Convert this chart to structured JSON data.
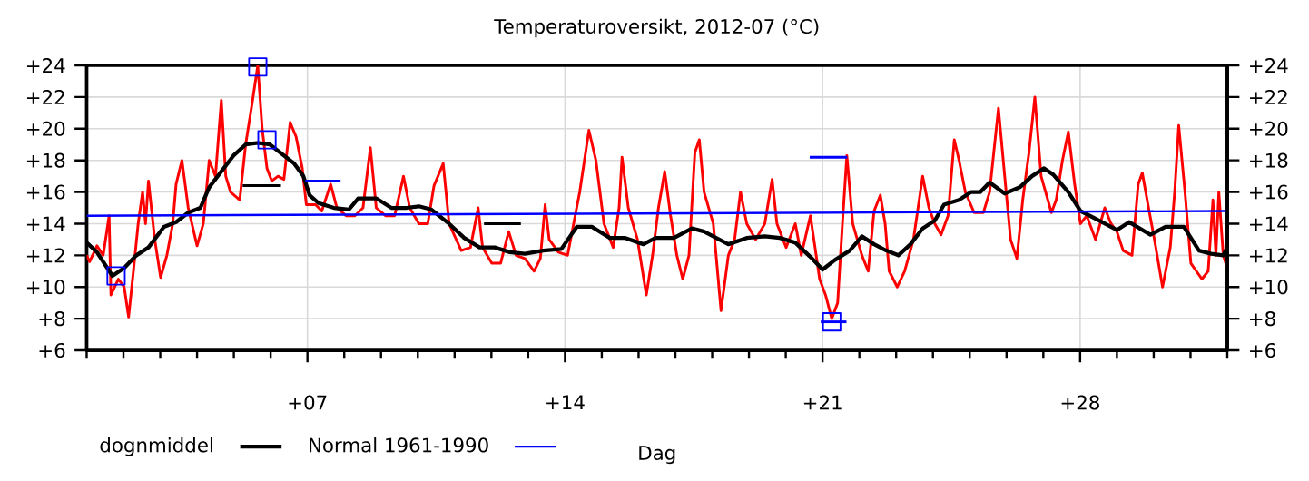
{
  "chart_data": {
    "type": "line",
    "title": "Temperaturoversikt, 2012-07 (°C)",
    "xlabel": "Dag",
    "xlim": [
      1,
      32
    ],
    "xticks": [
      {
        "value": 1,
        "label": null
      },
      {
        "value": 2,
        "label": null
      },
      {
        "value": 3,
        "label": null
      },
      {
        "value": 4,
        "label": null
      },
      {
        "value": 5,
        "label": null
      },
      {
        "value": 6,
        "label": null
      },
      {
        "value": 7,
        "label": "+07"
      },
      {
        "value": 8,
        "label": null
      },
      {
        "value": 9,
        "label": null
      },
      {
        "value": 10,
        "label": null
      },
      {
        "value": 11,
        "label": null
      },
      {
        "value": 12,
        "label": null
      },
      {
        "value": 13,
        "label": null
      },
      {
        "value": 14,
        "label": "+14"
      },
      {
        "value": 15,
        "label": null
      },
      {
        "value": 16,
        "label": null
      },
      {
        "value": 17,
        "label": null
      },
      {
        "value": 18,
        "label": null
      },
      {
        "value": 19,
        "label": null
      },
      {
        "value": 20,
        "label": null
      },
      {
        "value": 21,
        "label": "+21"
      },
      {
        "value": 22,
        "label": null
      },
      {
        "value": 23,
        "label": null
      },
      {
        "value": 24,
        "label": null
      },
      {
        "value": 25,
        "label": null
      },
      {
        "value": 26,
        "label": null
      },
      {
        "value": 27,
        "label": null
      },
      {
        "value": 28,
        "label": "+28"
      },
      {
        "value": 29,
        "label": null
      },
      {
        "value": 30,
        "label": null
      },
      {
        "value": 31,
        "label": null
      },
      {
        "value": 32,
        "label": null
      }
    ],
    "ylim": [
      6,
      24
    ],
    "yticks": [
      {
        "value": 6,
        "label": "+6"
      },
      {
        "value": 8,
        "label": "+8"
      },
      {
        "value": 10,
        "label": "+10"
      },
      {
        "value": 12,
        "label": "+12"
      },
      {
        "value": 14,
        "label": "+14"
      },
      {
        "value": 16,
        "label": "+16"
      },
      {
        "value": 18,
        "label": "+18"
      },
      {
        "value": 20,
        "label": "+20"
      },
      {
        "value": 22,
        "label": "+22"
      },
      {
        "value": 24,
        "label": "+24"
      }
    ],
    "y2lim": [
      6,
      24
    ],
    "y2ticks": [
      {
        "value": 6,
        "label": "+6"
      },
      {
        "value": 8,
        "label": "+8"
      },
      {
        "value": 10,
        "label": "+10"
      },
      {
        "value": 12,
        "label": "+12"
      },
      {
        "value": 14,
        "label": "+14"
      },
      {
        "value": 16,
        "label": "+16"
      },
      {
        "value": 18,
        "label": "+18"
      },
      {
        "value": 20,
        "label": "+20"
      },
      {
        "value": 22,
        "label": "+22"
      },
      {
        "value": 24,
        "label": "+24"
      }
    ],
    "grid": true,
    "legend": "bottom left",
    "line_style": "solid",
    "series": [
      {
        "color": "#ff0000",
        "x": [
          1.0,
          1.08,
          1.28,
          1.45,
          1.61,
          1.66,
          1.86,
          2.02,
          2.14,
          2.27,
          2.4,
          2.52,
          2.6,
          2.68,
          2.85,
          3.01,
          3.18,
          3.34,
          3.43,
          3.59,
          3.76,
          4.0,
          4.17,
          4.33,
          4.5,
          4.66,
          4.78,
          4.91,
          5.16,
          5.32,
          5.49,
          5.65,
          5.77,
          5.9,
          6.03,
          6.2,
          6.36,
          6.53,
          6.69,
          6.86,
          6.97,
          7.22,
          7.39,
          7.63,
          7.8,
          8.05,
          8.29,
          8.51,
          8.71,
          8.87,
          9.12,
          9.37,
          9.61,
          9.78,
          10.03,
          10.27,
          10.44,
          10.69,
          10.85,
          11.18,
          11.43,
          11.64,
          11.76,
          12.01,
          12.25,
          12.47,
          12.67,
          12.91,
          13.16,
          13.33,
          13.46,
          13.57,
          13.82,
          14.07,
          14.4,
          14.65,
          14.84,
          15.06,
          15.31,
          15.47,
          15.55,
          15.72,
          15.97,
          16.21,
          16.38,
          16.54,
          16.71,
          16.87,
          17.04,
          17.2,
          17.37,
          17.53,
          17.65,
          17.78,
          18.03,
          18.24,
          18.44,
          18.61,
          18.77,
          18.94,
          19.18,
          19.43,
          19.63,
          19.76,
          20.01,
          20.26,
          20.42,
          20.67,
          20.92,
          21.08,
          21.25,
          21.41,
          21.54,
          21.66,
          21.82,
          22.07,
          22.24,
          22.4,
          22.57,
          22.7,
          22.81,
          23.03,
          23.23,
          23.47,
          23.72,
          23.89,
          24.05,
          24.22,
          24.41,
          24.58,
          24.71,
          24.88,
          25.12,
          25.37,
          25.54,
          25.78,
          25.95,
          26.11,
          26.28,
          26.44,
          26.61,
          26.77,
          26.94,
          27.22,
          27.35,
          27.52,
          27.68,
          27.85,
          28.01,
          28.18,
          28.42,
          28.67,
          28.84,
          29.0,
          29.17,
          29.41,
          29.58,
          29.69,
          29.86,
          30.02,
          30.24,
          30.45,
          30.57,
          30.68,
          30.85,
          31.01,
          31.31,
          31.48,
          31.61,
          31.69,
          31.77,
          31.89,
          32.0
        ],
        "values": [
          12,
          11.6,
          12.6,
          12,
          14.5,
          9.5,
          10.5,
          10,
          8.1,
          11,
          14,
          16,
          14,
          16.7,
          13,
          10.6,
          12,
          14,
          16.5,
          18,
          15,
          12.6,
          14,
          18,
          17,
          21.8,
          17,
          16,
          15.5,
          19,
          21.5,
          24,
          20,
          17.5,
          16.7,
          17,
          16.8,
          20.4,
          19.5,
          17.5,
          15.2,
          15.2,
          14.8,
          16.5,
          15,
          14.5,
          14.5,
          15,
          18.8,
          15,
          14.5,
          14.5,
          17,
          15,
          14,
          14,
          16.4,
          17.8,
          14,
          12.3,
          12.5,
          15,
          12.5,
          11.5,
          11.5,
          13.5,
          12,
          11.8,
          11,
          11.8,
          15.2,
          13,
          12.2,
          12,
          16,
          19.9,
          18,
          14,
          12.5,
          15,
          18.2,
          15,
          13,
          9.5,
          12,
          15,
          17.3,
          14.5,
          12,
          10.5,
          12,
          18.5,
          19.3,
          16,
          14,
          8.5,
          12,
          13,
          16,
          14,
          13,
          14,
          16.8,
          14,
          12.5,
          14,
          12,
          14.5,
          10.5,
          9.5,
          8,
          9,
          14,
          18.3,
          14,
          12,
          11,
          14.8,
          15.8,
          14,
          11,
          10,
          11,
          13,
          17,
          15,
          14,
          13.3,
          14.5,
          19.3,
          18,
          16,
          14.7,
          14.7,
          16,
          21.3,
          17,
          13,
          11.8,
          15.5,
          18.5,
          22,
          17,
          14.7,
          15.5,
          18,
          19.8,
          16.5,
          14,
          14.5,
          13,
          15,
          14,
          13.5,
          12.3,
          12,
          16.5,
          17.2,
          15,
          13,
          10,
          12.5,
          16,
          20.2,
          16,
          11.5,
          10.5,
          11,
          15.5,
          12,
          16,
          12,
          11.2
        ]
      },
      {
        "type": "line",
        "name": "dognmiddel",
        "color": "#000000",
        "x": [
          1.0,
          1.28,
          1.7,
          2.02,
          2.35,
          2.68,
          3.1,
          3.43,
          3.76,
          4.09,
          4.33,
          4.66,
          4.99,
          5.32,
          5.65,
          5.98,
          6.31,
          6.64,
          6.89,
          7.06,
          7.3,
          7.72,
          8.13,
          8.38,
          8.87,
          9.28,
          9.7,
          10.03,
          10.36,
          10.85,
          11.26,
          11.68,
          12.09,
          12.5,
          12.91,
          13.41,
          13.9,
          14.32,
          14.73,
          15.22,
          15.64,
          16.13,
          16.46,
          16.96,
          17.45,
          17.78,
          18.44,
          18.94,
          19.43,
          19.84,
          20.26,
          20.67,
          21.0,
          21.33,
          21.74,
          22.07,
          22.4,
          22.73,
          23.06,
          23.39,
          23.72,
          24.05,
          24.3,
          24.71,
          25.04,
          25.29,
          25.54,
          25.95,
          26.36,
          26.69,
          27.02,
          27.27,
          27.68,
          28.01,
          28.51,
          29.0,
          29.33,
          29.91,
          30.32,
          30.82,
          31.23,
          31.56,
          31.89,
          32.0
        ],
        "values": [
          12.8,
          12.2,
          10.7,
          11.2,
          12,
          12.5,
          13.8,
          14.1,
          14.7,
          15,
          16.3,
          17.3,
          18.3,
          19,
          19.1,
          19,
          18.4,
          17.8,
          17,
          15.8,
          15.3,
          15,
          14.9,
          15.6,
          15.6,
          15,
          15,
          15.1,
          14.9,
          14,
          13.1,
          12.5,
          12.5,
          12.2,
          12.1,
          12.3,
          12.4,
          13.8,
          13.8,
          13.1,
          13.1,
          12.7,
          13.1,
          13.1,
          13.7,
          13.5,
          12.7,
          13.1,
          13.2,
          13.1,
          12.8,
          11.9,
          11.1,
          11.7,
          12.3,
          13.2,
          12.7,
          12.3,
          12,
          12.7,
          13.7,
          14.2,
          15.2,
          15.5,
          16,
          16,
          16.6,
          15.9,
          16.3,
          17,
          17.5,
          17.1,
          16,
          14.8,
          14.2,
          13.6,
          14.1,
          13.3,
          13.8,
          13.8,
          12.3,
          12.1,
          12,
          12.5
        ]
      },
      {
        "type": "line",
        "name": "Normal 1961-1990",
        "color": "#0000ff",
        "x": [
          1,
          32
        ],
        "values": [
          14.5,
          14.8
        ]
      },
      {
        "type": "scatter",
        "marker": "square",
        "color": "#0000ff",
        "x": [
          5.65,
          5.9,
          1.8,
          21.25
        ],
        "values": [
          23.9,
          19.3,
          10.7,
          7.8
        ]
      },
      {
        "type": "line",
        "color": "#000000",
        "x": [
          5.24,
          6.28
        ],
        "values": [
          16.4,
          16.4
        ]
      },
      {
        "type": "line",
        "color": "#000000",
        "x": [
          11.8,
          12.8
        ],
        "values": [
          14.0,
          14.0
        ]
      },
      {
        "type": "line",
        "color": "#0000ff",
        "x": [
          6.94,
          7.9
        ],
        "values": [
          16.7,
          16.7
        ]
      },
      {
        "type": "line",
        "color": "#0000ff",
        "x": [
          20.65,
          21.67
        ],
        "values": [
          18.2,
          18.2
        ]
      },
      {
        "type": "line",
        "color": "#0000ff",
        "x": [
          20.95,
          21.65
        ],
        "values": [
          7.8,
          7.8
        ]
      }
    ]
  }
}
